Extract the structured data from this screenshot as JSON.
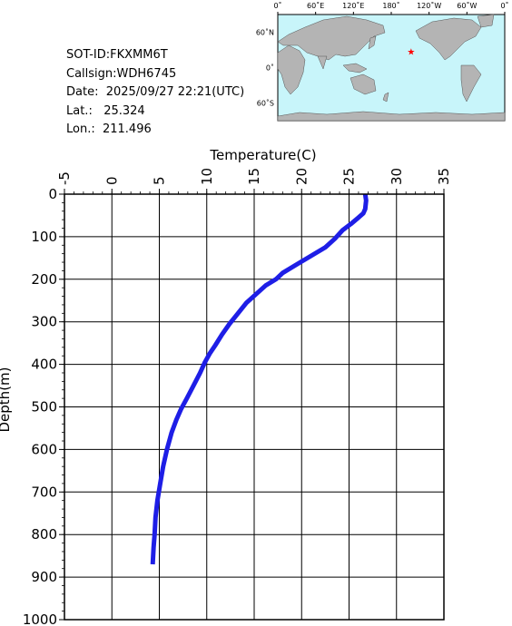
{
  "info": {
    "sot_id": "SOT-ID:FKXMM6T",
    "callsign": "Callsign:WDH6745",
    "date": "Date:  2025/09/27 22:21(UTC)",
    "lat": "Lat.:   25.324",
    "lon": "Lon.:  211.496"
  },
  "map": {
    "top_labels": [
      "0˚",
      "60˚E",
      "120˚E",
      "180˚",
      "120˚W",
      "60˚W",
      "0˚"
    ],
    "side_labels": [
      "60˚N",
      "0˚",
      "60˚S"
    ],
    "marker": {
      "lat": 25.324,
      "lon": 211.496,
      "symbol": "★"
    },
    "ocean_color": "#c8f5fa",
    "land_color": "#b4b4b4",
    "marker_color": "#ff0000"
  },
  "chart_data": {
    "type": "line",
    "xlabel": "Temperature(C)",
    "ylabel": "Depth(m)",
    "xlim": [
      -5,
      35
    ],
    "ylim": [
      0,
      1000
    ],
    "y_inverted": true,
    "x_axis_position": "top",
    "x_ticks": [
      "-5",
      "0",
      "5",
      "10",
      "15",
      "20",
      "25",
      "30",
      "35"
    ],
    "y_ticks": [
      "0",
      "100",
      "200",
      "300",
      "400",
      "500",
      "600",
      "700",
      "800",
      "900",
      "1000"
    ],
    "grid": true,
    "line_color": "#1e1ee6",
    "series": [
      {
        "x": [
          26.7,
          26.8,
          26.7,
          26.5,
          26.0,
          25.2,
          24.3,
          23.5,
          22.5,
          21.0,
          19.5,
          18.0,
          17.3,
          16.2,
          15.2,
          14.2,
          13.3,
          12.4,
          11.6,
          10.9,
          10.3,
          9.8,
          9.3,
          8.6,
          7.9,
          7.3,
          6.8,
          6.3,
          5.8,
          5.4,
          5.1,
          4.8,
          4.6,
          4.5,
          4.4,
          4.35,
          4.3
        ],
        "y": [
          0,
          15,
          35,
          45,
          55,
          70,
          85,
          105,
          125,
          145,
          165,
          185,
          200,
          215,
          235,
          255,
          280,
          305,
          330,
          355,
          375,
          395,
          420,
          450,
          480,
          505,
          530,
          560,
          600,
          640,
          680,
          720,
          760,
          800,
          830,
          850,
          870
        ]
      }
    ]
  }
}
